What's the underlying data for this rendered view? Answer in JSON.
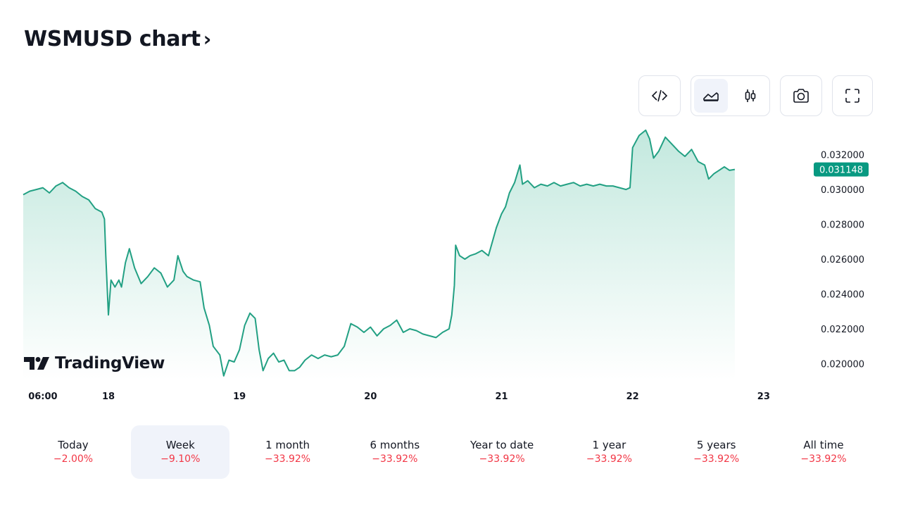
{
  "header": {
    "title": "WSMUSD chart",
    "chevron": "›"
  },
  "toolbar": {
    "buttons": [
      {
        "name": "embed",
        "icon": "code-icon"
      },
      {
        "name": "area-chart",
        "icon": "area-chart-icon",
        "active": true
      },
      {
        "name": "candlestick-chart",
        "icon": "candles-icon"
      },
      {
        "name": "snapshot",
        "icon": "camera-icon"
      },
      {
        "name": "fullscreen",
        "icon": "fullscreen-icon"
      }
    ]
  },
  "logo": {
    "text": "TradingView"
  },
  "colors": {
    "line": "#22a083",
    "area_top": "#bfe7dc",
    "price_tag": "#089981",
    "negative": "#f23645",
    "active_bg": "#f0f3fa"
  },
  "chart_data": {
    "type": "area",
    "symbol": "WSMUSD",
    "last_price": 0.031148,
    "last_price_label": "0.031148",
    "x_ticks": [
      {
        "label": "06:00",
        "t": 0.5
      },
      {
        "label": "18",
        "t": 1.0
      },
      {
        "label": "19",
        "t": 2.0
      },
      {
        "label": "20",
        "t": 3.0
      },
      {
        "label": "21",
        "t": 4.0
      },
      {
        "label": "22",
        "t": 5.0
      },
      {
        "label": "23",
        "t": 6.0
      }
    ],
    "y_ticks": [
      "0.032000",
      "0.030000",
      "0.028000",
      "0.026000",
      "0.024000",
      "0.022000",
      "0.020000"
    ],
    "y_tick_values": [
      0.032,
      0.03,
      0.028,
      0.026,
      0.024,
      0.022,
      0.02
    ],
    "xlim": [
      0.35,
      6.35
    ],
    "ylim": [
      0.01905,
      0.0336
    ],
    "points": [
      [
        0.35,
        0.0297
      ],
      [
        0.4,
        0.0299
      ],
      [
        0.45,
        0.03
      ],
      [
        0.5,
        0.0301
      ],
      [
        0.55,
        0.0298
      ],
      [
        0.6,
        0.0302
      ],
      [
        0.65,
        0.0304
      ],
      [
        0.7,
        0.0301
      ],
      [
        0.75,
        0.0299
      ],
      [
        0.8,
        0.0296
      ],
      [
        0.85,
        0.0294
      ],
      [
        0.9,
        0.0289
      ],
      [
        0.95,
        0.0287
      ],
      [
        0.97,
        0.0283
      ],
      [
        0.98,
        0.0262
      ],
      [
        1.0,
        0.0228
      ],
      [
        1.02,
        0.0248
      ],
      [
        1.05,
        0.0244
      ],
      [
        1.08,
        0.0248
      ],
      [
        1.1,
        0.0244
      ],
      [
        1.13,
        0.0258
      ],
      [
        1.16,
        0.0266
      ],
      [
        1.2,
        0.0255
      ],
      [
        1.25,
        0.0246
      ],
      [
        1.3,
        0.025
      ],
      [
        1.35,
        0.0255
      ],
      [
        1.4,
        0.0252
      ],
      [
        1.45,
        0.0244
      ],
      [
        1.5,
        0.0248
      ],
      [
        1.53,
        0.0262
      ],
      [
        1.57,
        0.0253
      ],
      [
        1.6,
        0.025
      ],
      [
        1.65,
        0.0248
      ],
      [
        1.7,
        0.0247
      ],
      [
        1.73,
        0.0232
      ],
      [
        1.77,
        0.0222
      ],
      [
        1.8,
        0.021
      ],
      [
        1.85,
        0.0205
      ],
      [
        1.88,
        0.0193
      ],
      [
        1.92,
        0.0202
      ],
      [
        1.96,
        0.0201
      ],
      [
        2.0,
        0.0208
      ],
      [
        2.04,
        0.0222
      ],
      [
        2.08,
        0.0229
      ],
      [
        2.12,
        0.0226
      ],
      [
        2.15,
        0.0208
      ],
      [
        2.18,
        0.0196
      ],
      [
        2.22,
        0.0203
      ],
      [
        2.26,
        0.0206
      ],
      [
        2.3,
        0.0201
      ],
      [
        2.34,
        0.0202
      ],
      [
        2.38,
        0.0196
      ],
      [
        2.42,
        0.0196
      ],
      [
        2.46,
        0.0198
      ],
      [
        2.5,
        0.0202
      ],
      [
        2.55,
        0.0205
      ],
      [
        2.6,
        0.0203
      ],
      [
        2.65,
        0.0205
      ],
      [
        2.7,
        0.0204
      ],
      [
        2.75,
        0.0205
      ],
      [
        2.8,
        0.021
      ],
      [
        2.85,
        0.0223
      ],
      [
        2.9,
        0.0221
      ],
      [
        2.95,
        0.0218
      ],
      [
        3.0,
        0.0221
      ],
      [
        3.05,
        0.0216
      ],
      [
        3.1,
        0.022
      ],
      [
        3.15,
        0.0222
      ],
      [
        3.2,
        0.0225
      ],
      [
        3.25,
        0.0218
      ],
      [
        3.3,
        0.022
      ],
      [
        3.35,
        0.0219
      ],
      [
        3.4,
        0.0217
      ],
      [
        3.45,
        0.0216
      ],
      [
        3.5,
        0.0215
      ],
      [
        3.55,
        0.0218
      ],
      [
        3.6,
        0.022
      ],
      [
        3.62,
        0.0228
      ],
      [
        3.64,
        0.0245
      ],
      [
        3.65,
        0.0268
      ],
      [
        3.68,
        0.0262
      ],
      [
        3.72,
        0.026
      ],
      [
        3.76,
        0.0262
      ],
      [
        3.8,
        0.0263
      ],
      [
        3.85,
        0.0265
      ],
      [
        3.9,
        0.0262
      ],
      [
        3.93,
        0.027
      ],
      [
        3.96,
        0.0278
      ],
      [
        4.0,
        0.0286
      ],
      [
        4.03,
        0.029
      ],
      [
        4.06,
        0.0298
      ],
      [
        4.1,
        0.0304
      ],
      [
        4.14,
        0.0314
      ],
      [
        4.16,
        0.0303
      ],
      [
        4.2,
        0.0305
      ],
      [
        4.25,
        0.0301
      ],
      [
        4.3,
        0.0303
      ],
      [
        4.35,
        0.0302
      ],
      [
        4.4,
        0.0304
      ],
      [
        4.45,
        0.0302
      ],
      [
        4.5,
        0.0303
      ],
      [
        4.55,
        0.0304
      ],
      [
        4.6,
        0.0302
      ],
      [
        4.65,
        0.0303
      ],
      [
        4.7,
        0.0302
      ],
      [
        4.75,
        0.0303
      ],
      [
        4.8,
        0.0302
      ],
      [
        4.85,
        0.0302
      ],
      [
        4.9,
        0.0301
      ],
      [
        4.95,
        0.03
      ],
      [
        4.98,
        0.0301
      ],
      [
        5.0,
        0.0324
      ],
      [
        5.05,
        0.0331
      ],
      [
        5.1,
        0.0334
      ],
      [
        5.13,
        0.0329
      ],
      [
        5.16,
        0.0318
      ],
      [
        5.2,
        0.0322
      ],
      [
        5.25,
        0.033
      ],
      [
        5.3,
        0.0326
      ],
      [
        5.35,
        0.0322
      ],
      [
        5.4,
        0.0319
      ],
      [
        5.45,
        0.0323
      ],
      [
        5.5,
        0.0316
      ],
      [
        5.55,
        0.0314
      ],
      [
        5.58,
        0.0306
      ],
      [
        5.62,
        0.0309
      ],
      [
        5.66,
        0.0311
      ],
      [
        5.7,
        0.0313
      ],
      [
        5.74,
        0.0311
      ],
      [
        5.78,
        0.03115
      ]
    ]
  },
  "periods": [
    {
      "label": "Today",
      "value": "−2.00%"
    },
    {
      "label": "Week",
      "value": "−9.10%",
      "active": true
    },
    {
      "label": "1 month",
      "value": "−33.92%"
    },
    {
      "label": "6 months",
      "value": "−33.92%"
    },
    {
      "label": "Year to date",
      "value": "−33.92%"
    },
    {
      "label": "1 year",
      "value": "−33.92%"
    },
    {
      "label": "5 years",
      "value": "−33.92%"
    },
    {
      "label": "All time",
      "value": "−33.92%"
    }
  ]
}
